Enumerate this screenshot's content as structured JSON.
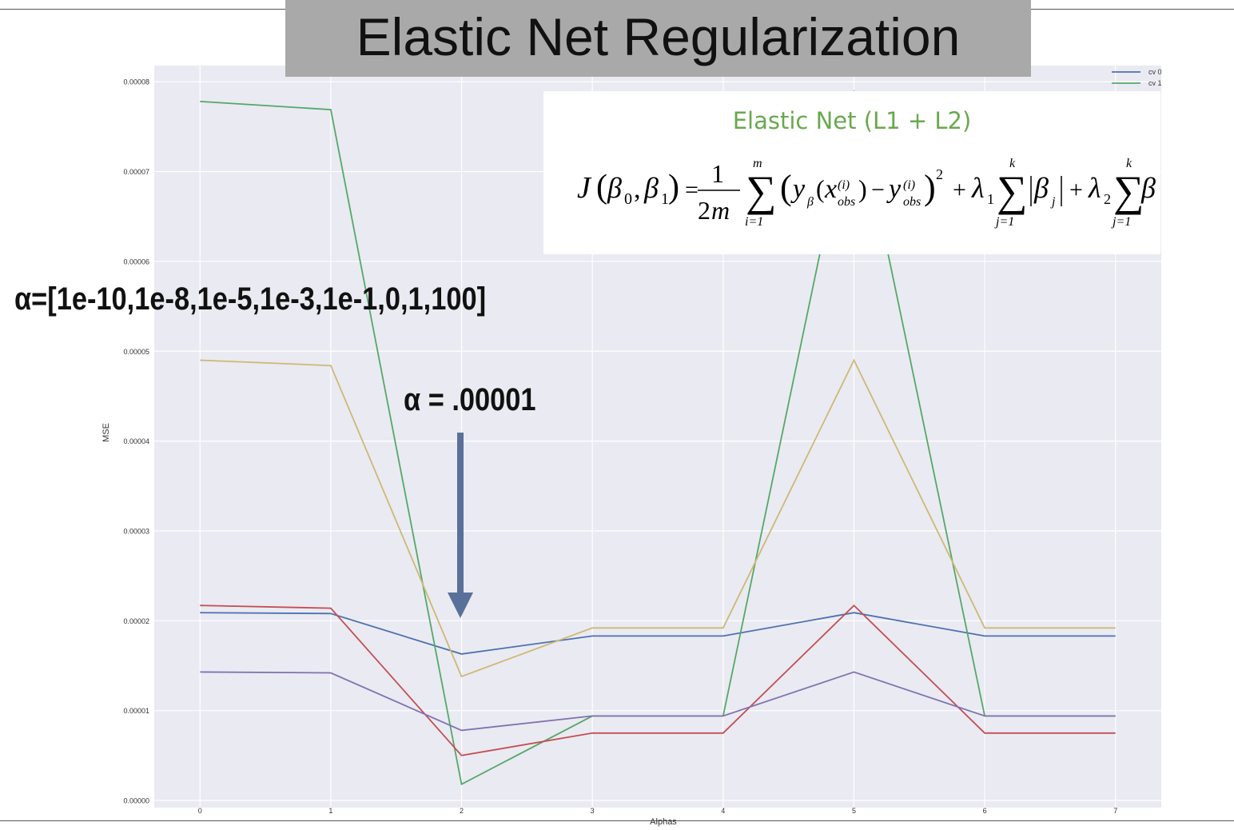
{
  "title": "Elastic Net Regularization",
  "formula": {
    "heading": "Elastic Net (L1 + L2)"
  },
  "annotations": {
    "alphas_list": "α=[1e-10,1e-8,1e-5,1e-3,1e-1,0,1,100]",
    "best_alpha": "α = .00001"
  },
  "chart_data": {
    "type": "line",
    "xlabel": "Alphas",
    "ylabel": "MSE",
    "x": [
      0,
      1,
      2,
      3,
      4,
      5,
      6,
      7
    ],
    "xticks": [
      "0",
      "1",
      "2",
      "3",
      "4",
      "5",
      "6",
      "7"
    ],
    "yticks": [
      "0.00000",
      "0.00001",
      "0.00002",
      "0.00003",
      "0.00004",
      "0.00005",
      "0.00006",
      "0.00007",
      "0.00008"
    ],
    "ylim": [
      -8e-07,
      8.18e-05
    ],
    "xlim": [
      -0.35,
      7.35
    ],
    "grid": true,
    "legend_position": "top-right",
    "background": "#eaeaf2",
    "series": [
      {
        "name": "cv 0",
        "color": "#4c72b0",
        "values": [
          2.09e-05,
          2.08e-05,
          1.63e-05,
          1.83e-05,
          1.83e-05,
          2.09e-05,
          1.83e-05,
          1.83e-05
        ]
      },
      {
        "name": "cv 1",
        "color": "#55a868",
        "values": [
          7.78e-05,
          7.69e-05,
          1.8e-06,
          9.4e-06,
          9.4e-06,
          7.9e-05,
          9.4e-06,
          9.4e-06
        ]
      },
      {
        "color": "#c44e52",
        "values": [
          2.17e-05,
          2.14e-05,
          5e-06,
          7.5e-06,
          7.5e-06,
          2.17e-05,
          7.5e-06,
          7.5e-06
        ]
      },
      {
        "color": "#8172b2",
        "values": [
          1.43e-05,
          1.42e-05,
          7.8e-06,
          9.4e-06,
          9.4e-06,
          1.43e-05,
          9.4e-06,
          9.4e-06
        ]
      },
      {
        "color": "#ccb974",
        "values": [
          4.9e-05,
          4.84e-05,
          1.38e-05,
          1.92e-05,
          1.92e-05,
          4.9e-05,
          1.92e-05,
          1.92e-05
        ]
      }
    ]
  }
}
